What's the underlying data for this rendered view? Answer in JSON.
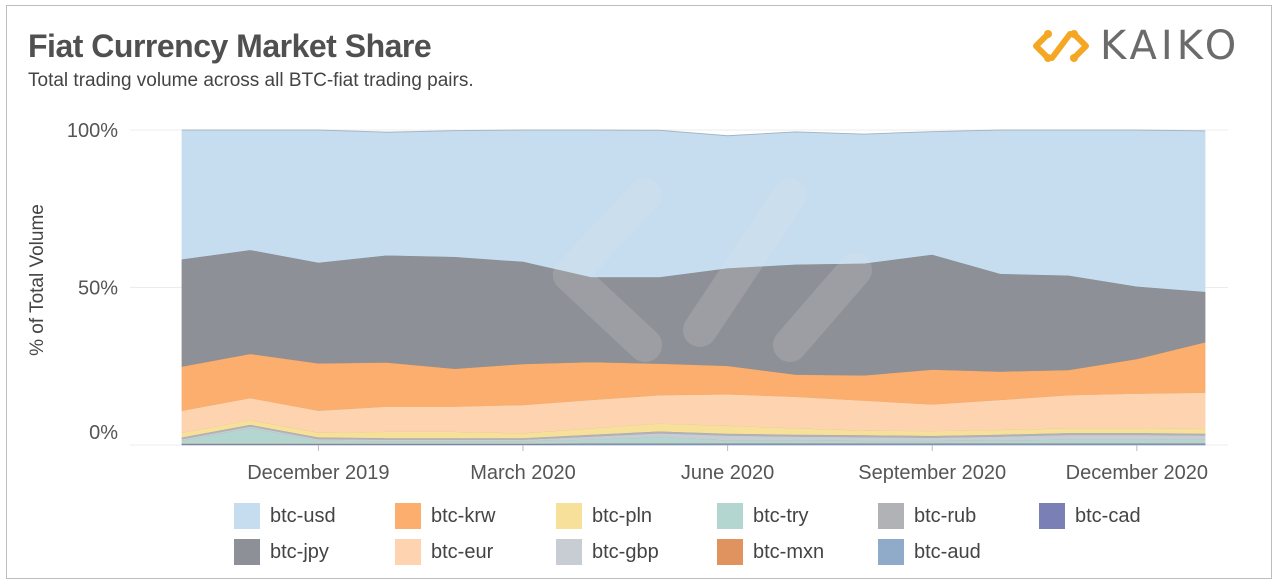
{
  "header": {
    "title": "Fiat Currency Market Share",
    "subtitle": "Total trading volume across all BTC-fiat trading pairs.",
    "logo_text": "KAIKO",
    "logo_color": "#f5a623"
  },
  "chart_data": {
    "type": "area",
    "stacked": true,
    "normalized": true,
    "ylabel": "% of Total Volume",
    "ylim": [
      0,
      100
    ],
    "yticks": [
      "100%",
      "50%",
      "0%"
    ],
    "x": [
      "Oct 2019",
      "Nov 2019",
      "Dec 2019",
      "Jan 2020",
      "Feb 2020",
      "Mar 2020",
      "Apr 2020",
      "May 2020",
      "Jun 2020",
      "Jul 2020",
      "Aug 2020",
      "Sep 2020",
      "Oct 2020",
      "Nov 2020",
      "Dec 2020",
      "Jan 2021"
    ],
    "xtick_labels": [
      "December 2019",
      "March 2020",
      "June 2020",
      "September 2020",
      "December 2020"
    ],
    "xtick_positions": [
      2,
      5,
      8,
      11,
      14
    ],
    "grid": true,
    "legend_position": "bottom",
    "series": [
      {
        "name": "btc-aud",
        "color": "#8fabc9",
        "values": [
          0.2,
          0.2,
          0.2,
          0.2,
          0.2,
          0.2,
          0.3,
          0.3,
          0.3,
          0.3,
          0.3,
          0.3,
          0.3,
          0.3,
          0.3,
          0.3
        ]
      },
      {
        "name": "btc-cad",
        "color": "#7a7fb5",
        "values": [
          0.2,
          0.2,
          0.2,
          0.2,
          0.2,
          0.2,
          0.2,
          0.2,
          0.2,
          0.2,
          0.2,
          0.2,
          0.2,
          0.2,
          0.2,
          0.2
        ]
      },
      {
        "name": "btc-mxn",
        "color": "#e0925f",
        "values": [
          0.1,
          0.1,
          0.1,
          0.1,
          0.1,
          0.1,
          0.1,
          0.1,
          0.1,
          0.1,
          0.1,
          0.1,
          0.1,
          0.1,
          0.1,
          0.1
        ]
      },
      {
        "name": "btc-try",
        "color": "#b4d6d0",
        "values": [
          1.0,
          5.0,
          1.0,
          0.8,
          0.8,
          0.8,
          1.2,
          2.0,
          1.0,
          1.0,
          0.8,
          0.8,
          1.0,
          1.2,
          1.2,
          1.2
        ]
      },
      {
        "name": "btc-gbp",
        "color": "#c8ccd3",
        "values": [
          0.5,
          0.5,
          0.5,
          0.5,
          0.5,
          0.5,
          1.0,
          1.2,
          1.5,
          1.2,
          1.2,
          1.0,
          1.2,
          1.5,
          1.5,
          1.3
        ]
      },
      {
        "name": "btc-rub",
        "color": "#b0b2b6",
        "values": [
          0.5,
          0.5,
          0.5,
          0.5,
          0.5,
          0.5,
          0.6,
          0.6,
          0.6,
          0.6,
          0.6,
          0.6,
          0.6,
          0.6,
          0.6,
          0.6
        ]
      },
      {
        "name": "btc-pln",
        "color": "#f7e09a",
        "values": [
          1.5,
          1.5,
          1.5,
          2.0,
          2.0,
          1.5,
          2.0,
          2.5,
          2.5,
          2.0,
          1.5,
          1.5,
          1.5,
          1.5,
          1.5,
          1.5
        ]
      },
      {
        "name": "btc-eur",
        "color": "#fdd3b0",
        "values": [
          7.0,
          7.0,
          7.0,
          8.0,
          8.0,
          9.0,
          9.0,
          9.0,
          10.0,
          10.0,
          9.5,
          8.5,
          9.5,
          10.5,
          11.0,
          11.5
        ]
      },
      {
        "name": "btc-krw",
        "color": "#fbae6d",
        "values": [
          14.0,
          14.0,
          15.0,
          14.0,
          12.0,
          13.0,
          12.0,
          10.0,
          9.0,
          7.0,
          8.0,
          11.0,
          9.0,
          8.0,
          11.0,
          16.0
        ]
      },
      {
        "name": "btc-jpy",
        "color": "#8e9097",
        "values": [
          34.0,
          33.0,
          32.0,
          34.0,
          35.5,
          32.5,
          27.0,
          27.5,
          31.0,
          35.0,
          35.5,
          36.5,
          31.0,
          30.0,
          23.0,
          16.0
        ]
      },
      {
        "name": "btc-usd",
        "color": "#c6ddf0",
        "values": [
          41.0,
          38.0,
          42.0,
          39.0,
          40.0,
          42.0,
          47.0,
          46.5,
          42.0,
          42.0,
          41.0,
          39.0,
          48.0,
          47.0,
          51.0,
          51.0
        ]
      }
    ],
    "legend": [
      {
        "name": "btc-usd",
        "color": "#c6ddf0"
      },
      {
        "name": "btc-krw",
        "color": "#fbae6d"
      },
      {
        "name": "btc-pln",
        "color": "#f7e09a"
      },
      {
        "name": "btc-try",
        "color": "#b4d6d0"
      },
      {
        "name": "btc-rub",
        "color": "#b0b2b6"
      },
      {
        "name": "btc-cad",
        "color": "#7a7fb5"
      },
      {
        "name": "btc-jpy",
        "color": "#8e9097"
      },
      {
        "name": "btc-eur",
        "color": "#fdd3b0"
      },
      {
        "name": "btc-gbp",
        "color": "#c8ccd3"
      },
      {
        "name": "btc-mxn",
        "color": "#e0925f"
      },
      {
        "name": "btc-aud",
        "color": "#8fabc9"
      }
    ]
  }
}
